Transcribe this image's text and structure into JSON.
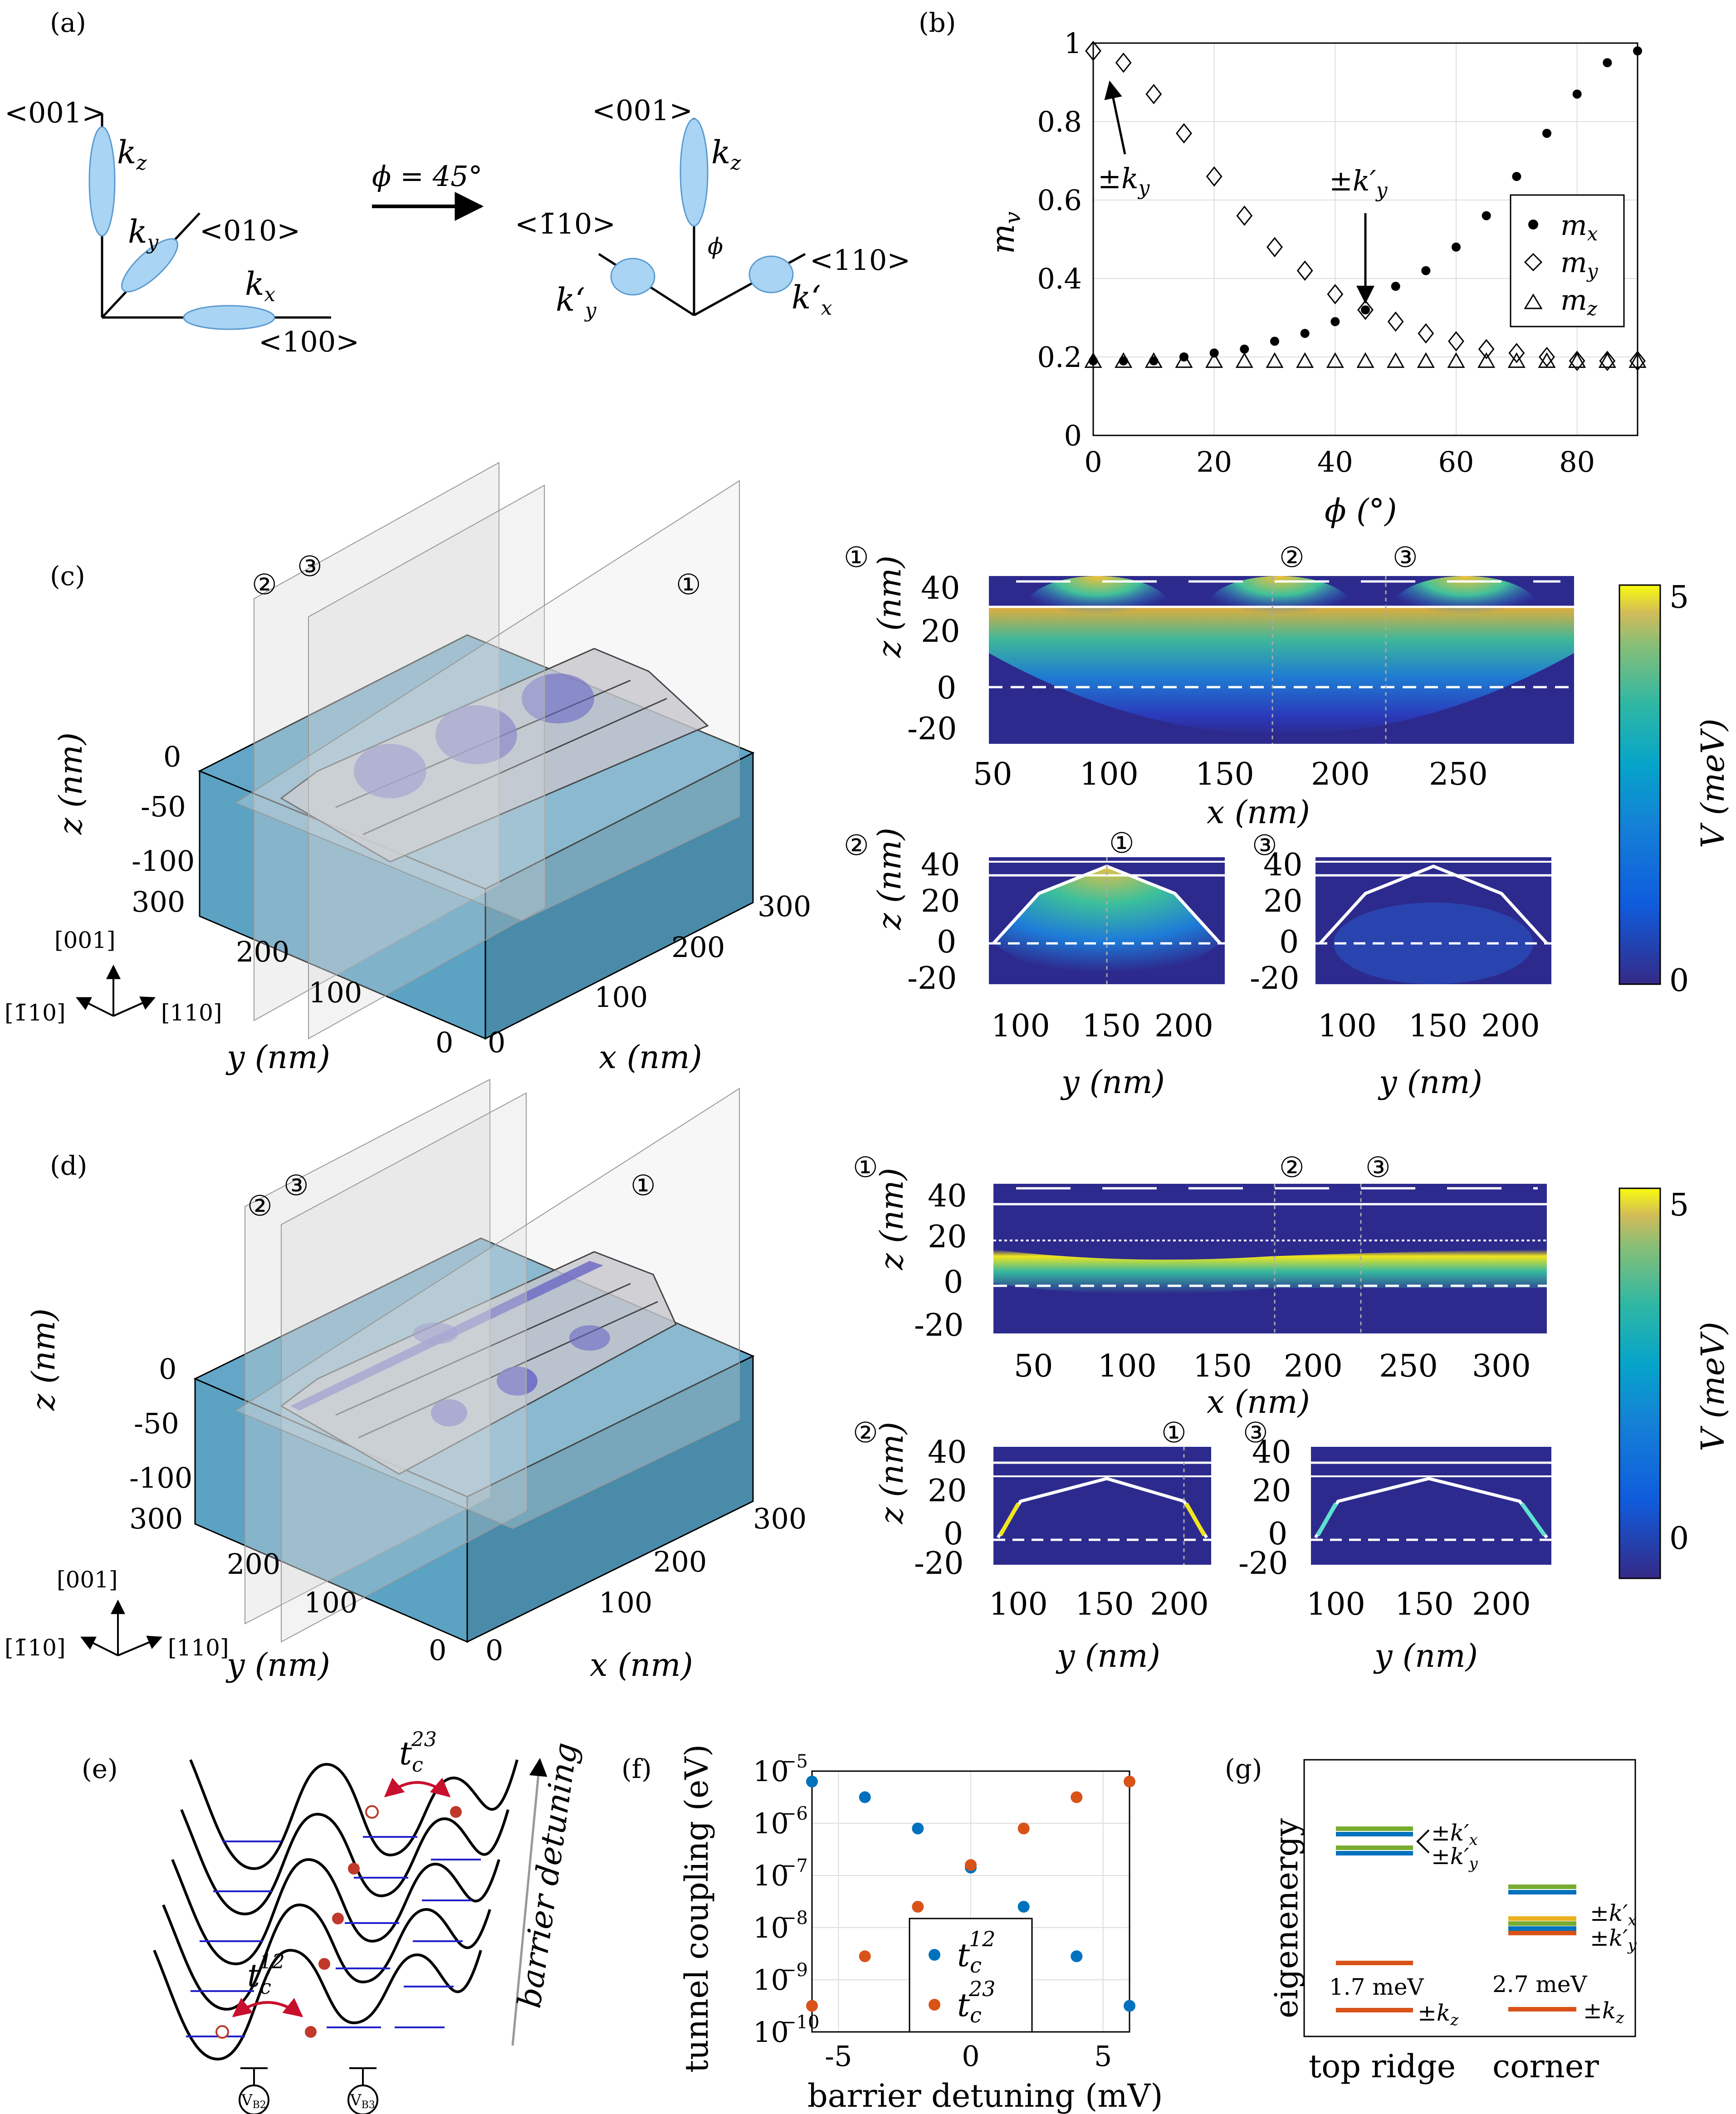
{
  "panels": {
    "a": {
      "label": "(a)",
      "left": {
        "axis_001": "<001>",
        "axis_010": "<010>",
        "axis_100": "<100>",
        "kz": "k",
        "kz_sub": "z",
        "ky": "k",
        "ky_sub": "y",
        "kx": "k",
        "kx_sub": "x"
      },
      "rotation": "ϕ = 45°",
      "right": {
        "axis_001": "<001>",
        "axis_m110": "<1̄10>",
        "axis_110": "<110>",
        "kz": "k",
        "kz_sub": "z",
        "kpy": "k‘",
        "kpy_sub": "y",
        "kpx": "k‘",
        "kpx_sub": "x",
        "phi": "ϕ"
      }
    },
    "b": {
      "label": "(b)",
      "annot_ky": "±k",
      "annot_ky_sub": "y",
      "annot_kpy": "±k′",
      "annot_kpy_sub": "y",
      "ylabel": "m",
      "ylabel_sub": "v",
      "xlabel": "ϕ (°)",
      "legend": [
        {
          "name": "m",
          "sub": "x",
          "marker": "dot"
        },
        {
          "name": "m",
          "sub": "y",
          "marker": "diamond"
        },
        {
          "name": "m",
          "sub": "z",
          "marker": "triangle"
        }
      ],
      "xticks": [
        "0",
        "20",
        "40",
        "60",
        "80"
      ],
      "yticks": [
        "0",
        "0.2",
        "0.4",
        "0.6",
        "0.8",
        "1"
      ]
    },
    "c": {
      "label": "(c)",
      "planes": [
        "②",
        "③",
        "①"
      ],
      "zlabel": "z (nm)",
      "ylabel": "y (nm)",
      "xlabel": "x (nm)",
      "zticks": [
        "0",
        "-50",
        "-100"
      ],
      "yticks": [
        "300",
        "200",
        "100",
        "0"
      ],
      "xticks": [
        "0",
        "100",
        "200",
        "300"
      ],
      "dirs": [
        "[001]",
        "[1̄10]",
        "[110]"
      ],
      "top": {
        "marker": "①",
        "cuts": [
          "②",
          "③"
        ],
        "ylabel": "z (nm)",
        "xlabel": "x (nm)",
        "yticks": [
          "40",
          "20",
          "0",
          "-20"
        ],
        "xticks": [
          "50",
          "100",
          "150",
          "200",
          "250"
        ]
      },
      "bl": {
        "marker": "②",
        "cut": "①",
        "ylabel": "z (nm)",
        "xlabel": "y (nm)",
        "yticks": [
          "40",
          "20",
          "0",
          "-20"
        ],
        "xticks": [
          "100",
          "150",
          "200"
        ]
      },
      "br": {
        "marker": "③",
        "xlabel": "y (nm)",
        "yticks": [
          "40",
          "20",
          "0",
          "-20"
        ],
        "xticks": [
          "100",
          "150",
          "200"
        ]
      },
      "colorbar": {
        "label": "V (meV)",
        "ticks": [
          "5",
          "0"
        ]
      }
    },
    "d": {
      "label": "(d)",
      "planes": [
        "②",
        "③",
        "①"
      ],
      "zlabel": "z (nm)",
      "ylabel": "y (nm)",
      "xlabel": "x (nm)",
      "zticks": [
        "0",
        "-50",
        "-100"
      ],
      "yticks": [
        "300",
        "200",
        "100",
        "0"
      ],
      "xticks": [
        "0",
        "100",
        "200",
        "300"
      ],
      "dirs": [
        "[001]",
        "[1̄10]",
        "[110]"
      ],
      "top": {
        "marker": "①",
        "cuts": [
          "②",
          "③"
        ],
        "ylabel": "z (nm)",
        "xlabel": "x (nm)",
        "yticks": [
          "40",
          "20",
          "0",
          "-20"
        ],
        "xticks": [
          "50",
          "100",
          "150",
          "200",
          "250",
          "300"
        ]
      },
      "bl": {
        "marker": "②",
        "cut": "①",
        "ylabel": "z (nm)",
        "xlabel": "y (nm)",
        "yticks": [
          "40",
          "20",
          "0",
          "-20"
        ],
        "xticks": [
          "100",
          "150",
          "200"
        ]
      },
      "br": {
        "marker": "③",
        "xlabel": "y (nm)",
        "yticks": [
          "40",
          "20",
          "0",
          "-20"
        ],
        "xticks": [
          "100",
          "150",
          "200"
        ]
      },
      "colorbar": {
        "label": "V (meV)",
        "ticks": [
          "5",
          "0"
        ]
      }
    },
    "e": {
      "label": "(e)",
      "t23": "t",
      "t23_sub": "c",
      "t23_sup": "23",
      "t12": "t",
      "t12_sub": "c",
      "t12_sup": "12",
      "side": "barrier detuning",
      "gate_b2": "V",
      "gate_b2_sub": "B2",
      "gate_b3": "V",
      "gate_b3_sub": "B3"
    },
    "f": {
      "label": "(f)",
      "ylabel": "tunnel coupling (eV)",
      "xlabel": "barrier detuning (mV)",
      "xticks": [
        "-5",
        "0",
        "5"
      ],
      "yticks": [
        "10",
        "10",
        "10",
        "10",
        "10",
        "10"
      ],
      "yexps": [
        "−10",
        "−9",
        "−8",
        "−7",
        "−6",
        "−5"
      ],
      "legend": [
        {
          "name": "t",
          "sub": "c",
          "sup": "12",
          "color": "#0072BD"
        },
        {
          "name": "t",
          "sub": "c",
          "sup": "23",
          "color": "#D95319"
        }
      ]
    },
    "g": {
      "label": "(g)",
      "ylabel": "eigenenergy",
      "cat1": "top ridge",
      "cat2": "corner",
      "gap1": "1.7 meV",
      "gap2": "2.7 meV",
      "lbl_kx": "±k′",
      "lbl_kx_sub": "x",
      "lbl_ky": "±k′",
      "lbl_ky_sub": "y",
      "lbl_kz": "±k",
      "lbl_kz_sub": "z",
      "lbl2_kx": "±k′",
      "lbl2_kx_sub": "x",
      "lbl2_ky": "±k′",
      "lbl2_ky_sub": "y",
      "lbl2_kz": "±k",
      "lbl2_kz_sub": "z"
    }
  },
  "chart_data": [
    {
      "type": "scatter",
      "title": "",
      "xlabel": "ϕ (°)",
      "ylabel": "m_v",
      "xlim": [
        0,
        90
      ],
      "ylim": [
        0,
        1
      ],
      "grid": true,
      "legend": "top-right",
      "x": [
        0,
        5,
        10,
        15,
        20,
        25,
        30,
        35,
        40,
        45,
        50,
        55,
        60,
        65,
        70,
        75,
        80,
        85,
        90
      ],
      "series": [
        {
          "name": "m_x",
          "marker": "dot",
          "values": [
            0.19,
            0.19,
            0.19,
            0.2,
            0.21,
            0.22,
            0.24,
            0.26,
            0.29,
            0.32,
            0.38,
            0.42,
            0.48,
            0.56,
            0.66,
            0.77,
            0.87,
            0.95,
            0.98
          ]
        },
        {
          "name": "m_y",
          "marker": "diamond",
          "values": [
            0.98,
            0.95,
            0.87,
            0.77,
            0.66,
            0.56,
            0.48,
            0.42,
            0.36,
            0.32,
            0.29,
            0.26,
            0.24,
            0.22,
            0.21,
            0.2,
            0.19,
            0.19,
            0.19
          ]
        },
        {
          "name": "m_z",
          "marker": "triangle",
          "values": [
            0.19,
            0.19,
            0.19,
            0.19,
            0.19,
            0.19,
            0.19,
            0.19,
            0.19,
            0.19,
            0.19,
            0.19,
            0.19,
            0.19,
            0.19,
            0.19,
            0.19,
            0.19,
            0.19
          ]
        }
      ]
    },
    {
      "type": "scatter",
      "title": "",
      "xlabel": "barrier detuning (mV)",
      "ylabel": "tunnel coupling (eV)",
      "xlim": [
        -6,
        6
      ],
      "ylim_log10": [
        -10,
        -5
      ],
      "grid": true,
      "legend": "bottom-center",
      "series": [
        {
          "name": "t_c^12",
          "color": "#0072BD",
          "x": [
            -6,
            -4,
            -2,
            0,
            2,
            4,
            6
          ],
          "values_log10": [
            -5.2,
            -5.5,
            -6.1,
            -6.85,
            -7.6,
            -8.55,
            -9.5
          ]
        },
        {
          "name": "t_c^23",
          "color": "#D95319",
          "x": [
            -6,
            -4,
            -2,
            0,
            2,
            4,
            6
          ],
          "values_log10": [
            -9.5,
            -8.55,
            -7.6,
            -6.8,
            -6.1,
            -5.5,
            -5.2
          ]
        }
      ]
    }
  ]
}
